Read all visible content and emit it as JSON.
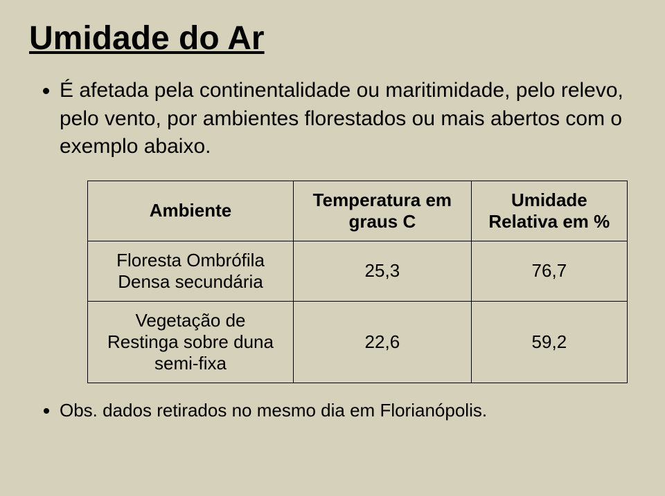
{
  "title": "Umidade do Ar",
  "bullet": "É afetada pela continentalidade ou maritimidade, pelo relevo, pelo vento, por ambientes florestados ou mais abertos com o exemplo abaixo.",
  "table": {
    "headers": [
      "Ambiente",
      "Temperatura em graus C",
      "Umidade Relativa em %"
    ],
    "rows": [
      [
        "Floresta Ombrófila Densa secundária",
        "25,3",
        "76,7"
      ],
      [
        "Vegetação de Restinga sobre duna semi-fixa",
        "22,6",
        "59,2"
      ]
    ]
  },
  "note": "Obs. dados retirados no mesmo dia em Florianópolis."
}
